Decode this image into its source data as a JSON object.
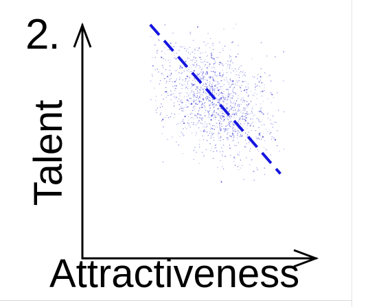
{
  "panel_label": "2.",
  "chart_data": {
    "type": "scatter",
    "xlabel": "Attractiveness",
    "ylabel": "Talent",
    "title": "",
    "xlim": [
      0,
      10
    ],
    "ylim": [
      0,
      10
    ],
    "grid": false,
    "legend": "none",
    "point_color": "#3a3ad6",
    "point_cloud": {
      "n": 1400,
      "center": [
        6.05,
        7.0
      ],
      "sd": [
        1.25,
        1.3
      ],
      "correlation": -0.35,
      "xrange": [
        3.0,
        9.3
      ],
      "yrange": [
        3.3,
        10.6
      ]
    },
    "trend_line": {
      "style": "dashed",
      "color": "#1515e0",
      "points": [
        [
          3.0,
          10.5
        ],
        [
          9.0,
          3.7
        ]
      ]
    }
  }
}
